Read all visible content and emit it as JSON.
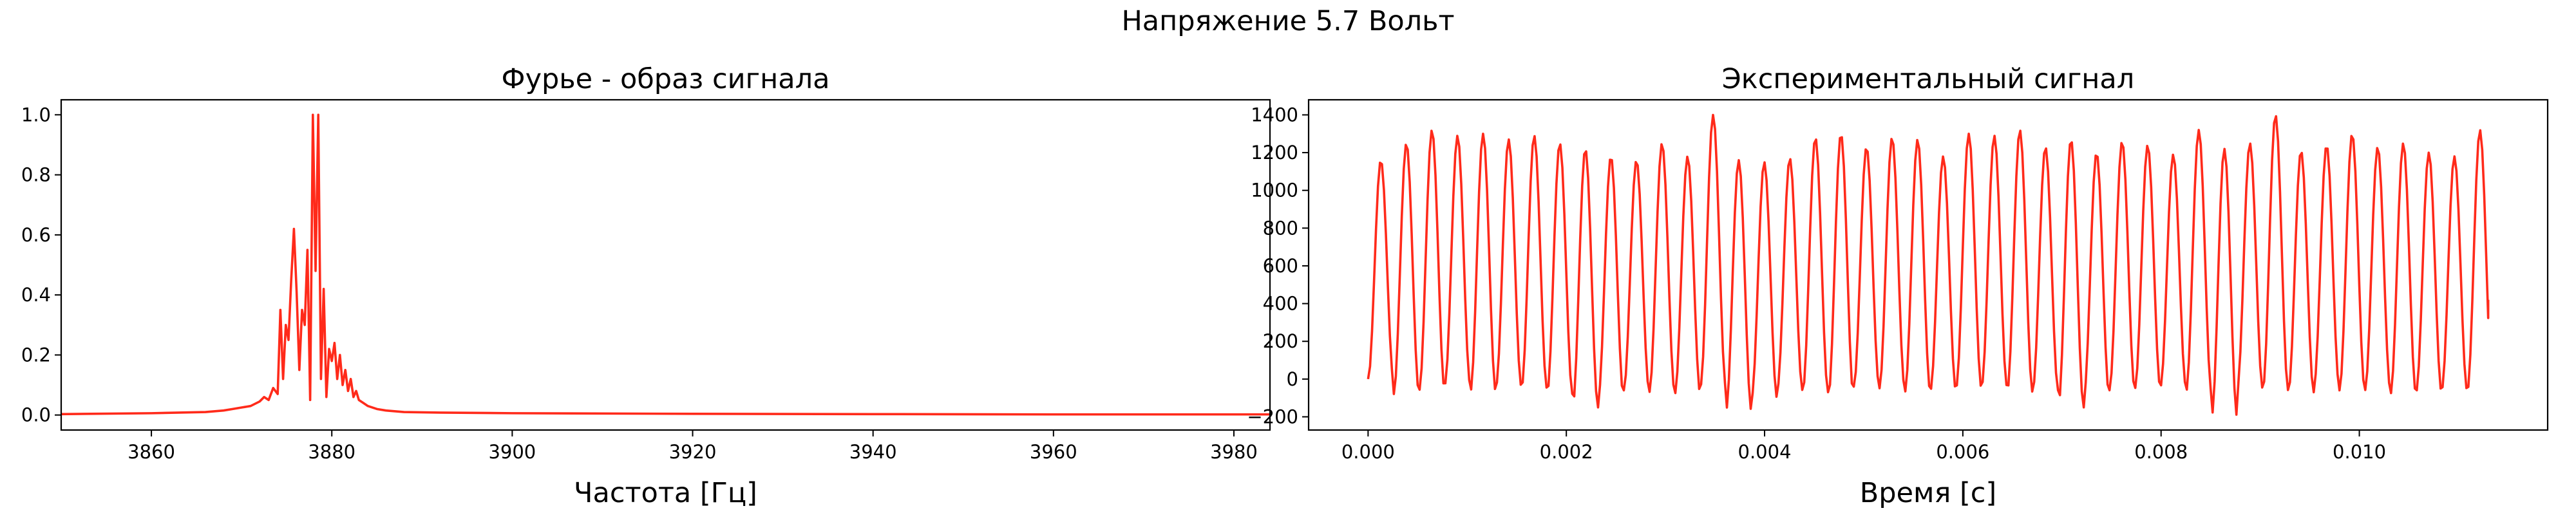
{
  "figure": {
    "suptitle": "Напряжение 5.7 Вольт"
  },
  "chart_data": [
    {
      "type": "line",
      "title": "Фурье - образ сигнала",
      "xlabel": "Частота [Гц]",
      "ylabel": "",
      "xlim": [
        3850,
        3984
      ],
      "ylim": [
        -0.05,
        1.05
      ],
      "xticks": [
        3860,
        3880,
        3900,
        3920,
        3940,
        3960,
        3980
      ],
      "yticks": [
        0.0,
        0.2,
        0.4,
        0.6,
        0.8,
        1.0
      ],
      "ytick_format": 1,
      "color": "#ff2a1a",
      "grid": false,
      "series": [
        {
          "x": [
            3850,
            3860,
            3866,
            3868,
            3869,
            3870,
            3871,
            3872,
            3872.5,
            3873,
            3873.5,
            3874,
            3874.3,
            3874.6,
            3874.9,
            3875.2,
            3875.5,
            3875.8,
            3876.1,
            3876.4,
            3876.7,
            3877,
            3877.3,
            3877.6,
            3877.9,
            3878.2,
            3878.5,
            3878.8,
            3879.1,
            3879.4,
            3879.7,
            3880,
            3880.3,
            3880.6,
            3880.9,
            3881.2,
            3881.5,
            3881.8,
            3882.1,
            3882.4,
            3882.7,
            3883,
            3883.5,
            3884,
            3885,
            3886,
            3888,
            3892,
            3900,
            3920,
            3940,
            3960,
            3984
          ],
          "y": [
            0.003,
            0.006,
            0.01,
            0.015,
            0.02,
            0.025,
            0.03,
            0.045,
            0.06,
            0.05,
            0.09,
            0.07,
            0.35,
            0.12,
            0.3,
            0.25,
            0.45,
            0.62,
            0.41,
            0.15,
            0.35,
            0.3,
            0.55,
            0.05,
            1.0,
            0.48,
            1.0,
            0.12,
            0.42,
            0.06,
            0.22,
            0.18,
            0.24,
            0.12,
            0.2,
            0.1,
            0.15,
            0.08,
            0.12,
            0.06,
            0.08,
            0.05,
            0.04,
            0.03,
            0.02,
            0.015,
            0.01,
            0.008,
            0.006,
            0.004,
            0.003,
            0.002,
            0.002
          ]
        }
      ]
    },
    {
      "type": "line",
      "title": "Экспериментальный сигнал",
      "xlabel": "Время [с]",
      "ylabel": "",
      "xlim": [
        -0.0006,
        0.0119
      ],
      "ylim": [
        -270,
        1480
      ],
      "xticks": [
        0.0,
        0.002,
        0.004,
        0.006,
        0.008,
        0.01
      ],
      "xtick_format": 3,
      "yticks": [
        -200,
        0,
        200,
        400,
        600,
        800,
        1000,
        1200,
        1400
      ],
      "color": "#ff2a1a",
      "grid": false,
      "signal": {
        "duration": 0.0113,
        "frequency": 3878,
        "peak_levels": [
          1160,
          1250,
          1320,
          1290,
          1300,
          1270,
          1290,
          1250,
          1220,
          1180,
          1160,
          1250,
          1180,
          1400,
          1160,
          1150,
          1170,
          1280,
          1300,
          1230,
          1280,
          1270,
          1180,
          1300,
          1290,
          1320,
          1230,
          1270,
          1200,
          1260,
          1240,
          1190,
          1320,
          1220,
          1250,
          1400,
          1210,
          1240,
          1300,
          1230,
          1250,
          1200,
          1180,
          1320
        ],
        "trough_levels": [
          0,
          -80,
          -60,
          -30,
          -70,
          -40,
          -50,
          -80,
          -150,
          -100,
          -60,
          -70,
          -80,
          -40,
          -170,
          -100,
          -60,
          -70,
          -100,
          -40,
          -50,
          -70,
          -60,
          -50,
          -40,
          -70,
          -60,
          -150,
          -90,
          -60,
          -50,
          -40,
          -70,
          -200,
          -50,
          -60,
          -70,
          -40,
          -60,
          -60,
          -80,
          -70,
          -60,
          -70
        ],
        "end_value": 420
      }
    }
  ]
}
